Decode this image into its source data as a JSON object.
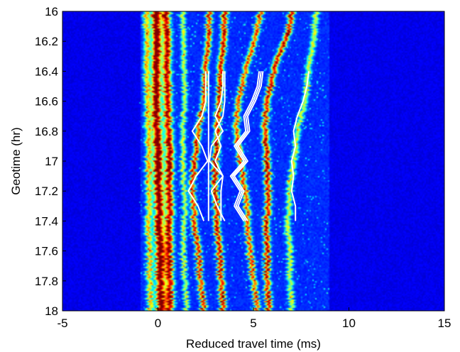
{
  "chart_data": {
    "type": "heatmap",
    "title": "",
    "xlabel": "Reduced travel time (ms)",
    "ylabel": "Geotime (hr)",
    "xlim": [
      -5,
      15
    ],
    "ylim": [
      16,
      18
    ],
    "y_reversed": true,
    "xticks": [
      -5,
      0,
      5,
      10,
      15
    ],
    "xtick_labels": [
      "-5",
      "0",
      "5",
      "10",
      "15"
    ],
    "yticks": [
      16,
      16.2,
      16.4,
      16.6,
      16.8,
      17,
      17.2,
      17.4,
      17.6,
      17.8,
      18
    ],
    "ytick_labels": [
      "16",
      "16.2",
      "16.4",
      "16.6",
      "16.8",
      "17",
      "17.2",
      "17.4",
      "17.6",
      "17.8",
      "18"
    ],
    "grid": false,
    "colormap": "jet",
    "background_color": "#0a2a9e",
    "ridges": [
      {
        "t": [
          16,
          16.2,
          16.4,
          16.6,
          16.8,
          17,
          17.2,
          17.4,
          17.6,
          17.8,
          18
        ],
        "x": [
          -0.1,
          -0.1,
          -0.05,
          -0.1,
          -0.05,
          0,
          0.05,
          0.05,
          0.1,
          0.1,
          0.15
        ],
        "intensity": 1.0,
        "width": 0.22
      },
      {
        "t": [
          16,
          16.2,
          16.4,
          16.6,
          16.8,
          17,
          17.2,
          17.4,
          17.6,
          17.8,
          18
        ],
        "x": [
          0.4,
          0.45,
          0.5,
          0.5,
          0.55,
          0.6,
          0.6,
          0.6,
          0.55,
          0.6,
          0.6
        ],
        "intensity": 0.85,
        "width": 0.2
      },
      {
        "t": [
          16,
          16.2,
          16.4,
          16.6,
          16.8,
          17,
          17.2,
          17.4,
          17.6,
          17.8,
          18
        ],
        "x": [
          -0.6,
          -0.6,
          -0.55,
          -0.55,
          -0.5,
          -0.5,
          -0.45,
          -0.5,
          -0.45,
          -0.45,
          -0.4
        ],
        "intensity": 0.55,
        "width": 0.15
      },
      {
        "t": [
          16,
          16.2,
          16.4,
          16.6,
          16.8,
          17,
          17.2,
          17.4,
          17.6,
          17.8,
          18
        ],
        "x": [
          2.7,
          2.6,
          2.5,
          2.4,
          2.1,
          1.9,
          1.8,
          1.9,
          2.1,
          2.2,
          2.4
        ],
        "intensity": 0.75,
        "width": 0.14
      },
      {
        "t": [
          16,
          16.2,
          16.4,
          16.6,
          16.8,
          17,
          17.2,
          17.4,
          17.6,
          17.8,
          18
        ],
        "x": [
          3.5,
          3.4,
          3.3,
          3.2,
          3.1,
          3.0,
          3.0,
          3.1,
          3.2,
          3.3,
          3.4
        ],
        "intensity": 0.8,
        "width": 0.15
      },
      {
        "t": [
          16,
          16.2,
          16.4,
          16.6,
          16.8,
          17,
          17.2,
          17.4,
          17.6,
          17.8,
          18
        ],
        "x": [
          5.4,
          5.0,
          4.6,
          4.2,
          4.1,
          4.3,
          4.6,
          4.7,
          4.8,
          5.0,
          5.2
        ],
        "intensity": 0.7,
        "width": 0.14
      },
      {
        "t": [
          16,
          16.1,
          16.2,
          16.3,
          16.4,
          16.5,
          16.6,
          16.8,
          17,
          17.2,
          17.4,
          17.6,
          17.8,
          18
        ],
        "x": [
          7.0,
          6.9,
          6.6,
          6.3,
          6.1,
          5.9,
          5.7,
          5.6,
          5.7,
          5.8,
          5.7,
          5.7,
          5.7,
          5.8
        ],
        "intensity": 0.8,
        "width": 0.15
      },
      {
        "t": [
          16,
          16.2,
          16.4,
          16.6,
          16.8,
          17,
          17.2,
          17.4,
          17.6,
          17.8,
          18
        ],
        "x": [
          8.3,
          8.1,
          7.9,
          7.7,
          7.3,
          7.1,
          6.9,
          6.8,
          6.9,
          6.9,
          7.0
        ],
        "intensity": 0.45,
        "width": 0.14
      },
      {
        "t": [
          16,
          16.2,
          16.4,
          16.6,
          16.8,
          17,
          17.2,
          17.4,
          17.6,
          17.8,
          18
        ],
        "x": [
          1.3,
          1.3,
          1.4,
          1.4,
          1.3,
          1.3,
          1.4,
          1.4,
          1.3,
          1.4,
          1.5
        ],
        "intensity": 0.45,
        "width": 0.12
      }
    ],
    "overlay_traces": [
      {
        "color": "#ffffff",
        "t": [
          16.4,
          16.5,
          16.6,
          16.7,
          16.8,
          16.9,
          17.0,
          17.1,
          17.2,
          17.3,
          17.4
        ],
        "x": [
          2.5,
          2.5,
          2.5,
          2.3,
          1.8,
          2.3,
          2.6,
          2.0,
          1.6,
          2.1,
          2.4
        ]
      },
      {
        "color": "#ffffff",
        "t": [
          16.4,
          16.5,
          16.6,
          16.7,
          16.8,
          16.9,
          17.0,
          17.1,
          17.2,
          17.3,
          17.4
        ],
        "x": [
          2.65,
          2.65,
          2.65,
          2.65,
          2.65,
          2.65,
          2.65,
          2.65,
          2.65,
          2.65,
          2.65
        ]
      },
      {
        "color": "#ffffff",
        "t": [
          16.4,
          16.5,
          16.6,
          16.7,
          16.8,
          16.9,
          17.0,
          17.1,
          17.2,
          17.3,
          17.4
        ],
        "x": [
          3.4,
          3.4,
          3.3,
          3.0,
          3.4,
          2.8,
          2.7,
          3.4,
          2.8,
          3.1,
          3.5
        ]
      },
      {
        "color": "#ffffff",
        "t": [
          16.4,
          16.5,
          16.6,
          16.7,
          16.8,
          16.9,
          17.0,
          17.1,
          17.2,
          17.3,
          17.4
        ],
        "x": [
          3.5,
          3.5,
          3.5,
          3.4,
          3.0,
          3.3,
          3.0,
          3.4,
          3.3,
          3.3,
          3.3
        ]
      },
      {
        "color": "#ffffff",
        "t": [
          16.4,
          16.5,
          16.6,
          16.7,
          16.8,
          16.9,
          17.0,
          17.1,
          17.2,
          17.3,
          17.4
        ],
        "x": [
          5.5,
          5.4,
          5.1,
          4.7,
          4.8,
          4.2,
          4.7,
          4.0,
          4.5,
          4.2,
          4.7
        ]
      },
      {
        "color": "#ffffff",
        "t": [
          16.4,
          16.5,
          16.6,
          16.7,
          16.8,
          16.9,
          17.0,
          17.1,
          17.2,
          17.3,
          17.4
        ],
        "x": [
          5.4,
          5.3,
          5.0,
          4.6,
          4.7,
          4.1,
          4.6,
          3.9,
          4.4,
          4.1,
          4.6
        ]
      },
      {
        "color": "#ffffff",
        "t": [
          16.4,
          16.5,
          16.6,
          16.7,
          16.8,
          16.9,
          17.0,
          17.1,
          17.2,
          17.3,
          17.4
        ],
        "x": [
          5.3,
          5.2,
          4.9,
          4.5,
          4.6,
          4.0,
          4.5,
          3.8,
          4.3,
          4.0,
          4.5
        ]
      },
      {
        "color": "#ffffff",
        "t": [
          16.4,
          16.5,
          16.6,
          16.7,
          16.8,
          16.9,
          17.0,
          17.1,
          17.2,
          17.3,
          17.4
        ],
        "x": [
          7.9,
          7.8,
          7.6,
          7.3,
          7.1,
          7.2,
          7.0,
          7.1,
          7.0,
          7.2,
          7.2
        ]
      }
    ]
  }
}
